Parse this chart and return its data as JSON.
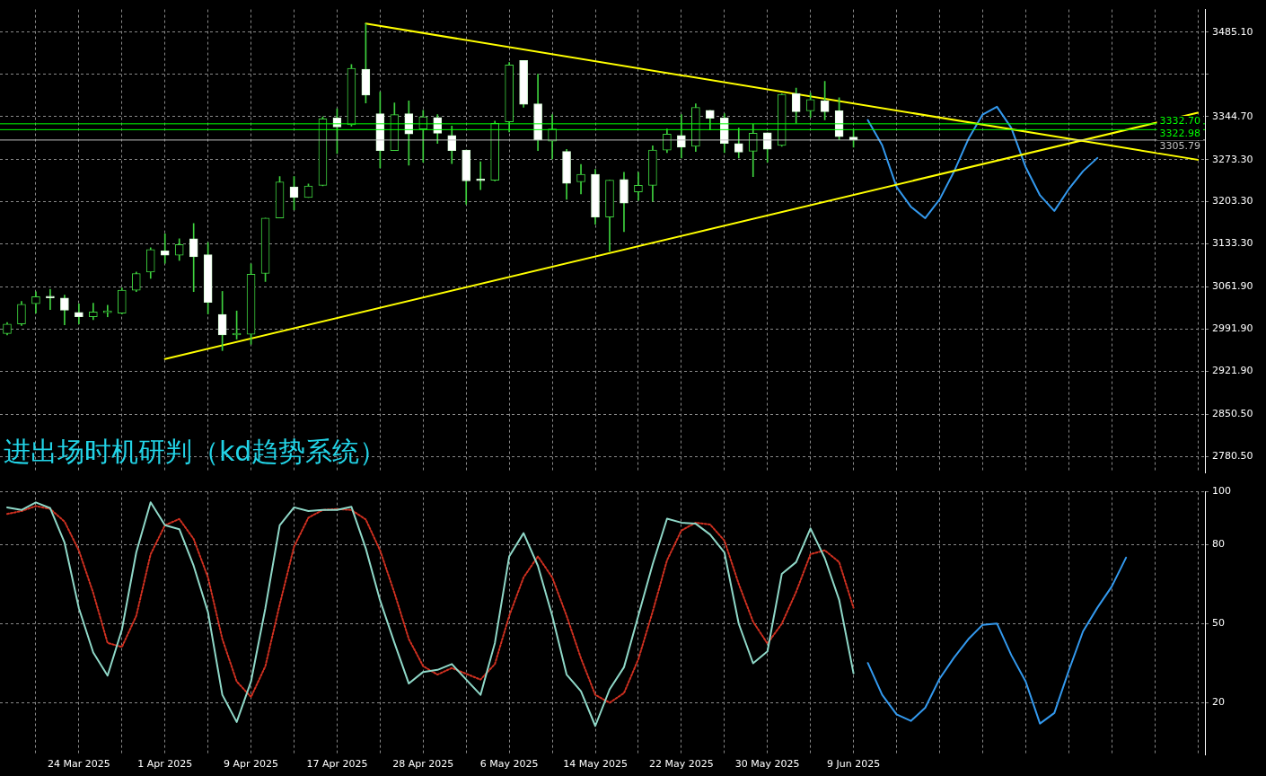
{
  "chart_data": [
    {
      "type": "candlestick",
      "categories": [
        null,
        null,
        null,
        null,
        null,
        null,
        null,
        null,
        null,
        null,
        null,
        null,
        null,
        null,
        null,
        null,
        null,
        null,
        null,
        null,
        null,
        null,
        null,
        null,
        null,
        null,
        null,
        null,
        null,
        null,
        null,
        null,
        null,
        null,
        null,
        null,
        null,
        null,
        null,
        null,
        null,
        null,
        null,
        null,
        null,
        null,
        null,
        null,
        null,
        null,
        null,
        null,
        null,
        null,
        null,
        null,
        null,
        null,
        null,
        null,
        null,
        null,
        null,
        null,
        null,
        null,
        null,
        null,
        null,
        null,
        null,
        null,
        null,
        null,
        null,
        null,
        null,
        null,
        null,
        null,
        null,
        null,
        null,
        null
      ],
      "ohlc": [
        [
          2984.5,
          3002.6,
          2982.0,
          3000.3
        ],
        [
          3000.3,
          3037.7,
          2997.8,
          3032.8
        ],
        [
          3033.8,
          3054.0,
          3018.4,
          3045.8
        ],
        [
          3045.8,
          3057.9,
          3024.2,
          3043.5
        ],
        [
          3043.5,
          3048.2,
          2998.8,
          3023.3
        ],
        [
          3019.4,
          3033.8,
          3000.3,
          3012.2
        ],
        [
          3012.2,
          3034.8,
          3007.5,
          3020.4
        ],
        [
          3019.0,
          3031.4,
          3012.2,
          3019.9
        ],
        [
          3018.4,
          3060.2,
          3017.0,
          3056.4
        ],
        [
          3056.4,
          3086.6,
          3054.0,
          3084.2
        ],
        [
          3086.6,
          3126.9,
          3076.0,
          3124.1
        ],
        [
          3121.6,
          3150.0,
          3101.0,
          3114.4
        ],
        [
          3114.4,
          3141.8,
          3105.8,
          3132.1
        ],
        [
          3141.8,
          3167.2,
          3054.0,
          3112.0
        ],
        [
          3115.4,
          3135.6,
          3017.0,
          3036.3
        ],
        [
          3016.1,
          3054.4,
          2956.1,
          2982.0
        ],
        [
          2982.0,
          3021.9,
          2975.2,
          2983.0
        ],
        [
          2983.4,
          3100.0,
          2966.6,
          3082.8
        ],
        [
          3084.2,
          3176.3,
          3070.8,
          3176.3
        ],
        [
          3176.3,
          3245.0,
          3176.3,
          3236.3
        ],
        [
          3228.1,
          3245.0,
          3189.7,
          3210.4
        ],
        [
          3210.4,
          3232.9,
          3210.4,
          3229.6
        ],
        [
          3230.6,
          3344.3,
          3229.6,
          3340.8
        ],
        [
          3342.3,
          3357.7,
          3283.3,
          3327.4
        ],
        [
          3331.3,
          3431.1,
          3328.9,
          3424.9
        ],
        [
          3423.4,
          3499.1,
          3367.3,
          3380.3
        ],
        [
          3349.5,
          3385.4,
          3259.4,
          3288.1
        ],
        [
          3288.1,
          3367.3,
          3288.1,
          3348.0
        ],
        [
          3349.5,
          3370.6,
          3264.1,
          3315.9
        ],
        [
          3324.1,
          3355.2,
          3268.9,
          3344.3
        ],
        [
          3343.3,
          3348.0,
          3300.1,
          3316.9
        ],
        [
          3313.5,
          3328.9,
          3266.6,
          3288.1
        ],
        [
          3289.0,
          3289.0,
          3199.3,
          3237.8
        ],
        [
          3240.1,
          3269.9,
          3223.4,
          3238.2
        ],
        [
          3239.2,
          3337.1,
          3237.8,
          3333.6
        ],
        [
          3336.1,
          3434.4,
          3319.2,
          3430.6
        ],
        [
          3437.8,
          3437.8,
          3360.1,
          3364.9
        ],
        [
          3365.9,
          3415.2,
          3288.1,
          3305.8
        ],
        [
          3304.0,
          3348.0,
          3274.6,
          3324.1
        ],
        [
          3286.7,
          3290.4,
          3207.5,
          3233.9
        ],
        [
          3236.3,
          3265.1,
          3216.2,
          3248.7
        ],
        [
          3248.7,
          3256.9,
          3165.8,
          3177.7
        ],
        [
          3177.7,
          3239.2,
          3121.2,
          3239.2
        ],
        [
          3240.1,
          3252.2,
          3153.7,
          3200.8
        ],
        [
          3219.5,
          3252.2,
          3205.5,
          3230.6
        ],
        [
          3230.6,
          3296.2,
          3204.1,
          3289.0
        ],
        [
          3289.0,
          3324.1,
          3284.7,
          3315.5
        ],
        [
          3313.5,
          3348.0,
          3276.1,
          3293.9
        ],
        [
          3295.3,
          3365.9,
          3286.7,
          3360.1
        ],
        [
          3355.2,
          3355.2,
          3322.7,
          3341.8
        ],
        [
          3342.3,
          3349.5,
          3284.7,
          3300.1
        ],
        [
          3300.1,
          3325.6,
          3276.1,
          3285.7
        ],
        [
          3287.1,
          3332.2,
          3245.0,
          3316.9
        ],
        [
          3317.8,
          3317.8,
          3268.9,
          3290.4
        ],
        [
          3296.8,
          3382.6,
          3295.3,
          3381.7
        ],
        [
          3383.1,
          3392.2,
          3333.6,
          3352.9
        ],
        [
          3354.3,
          3384.0,
          3343.3,
          3373.1
        ],
        [
          3371.0,
          3403.3,
          3339.4,
          3352.9
        ],
        [
          3354.3,
          3375.9,
          3306.3,
          3311.2
        ],
        [
          3310.6,
          3321.7,
          3293.9,
          3305.8
        ],
        null,
        null,
        null,
        null,
        null,
        null,
        null,
        null,
        null,
        null,
        null,
        null,
        null,
        null,
        null,
        null,
        null,
        null,
        null,
        null,
        null,
        null,
        null,
        null
      ],
      "series": [
        {
          "type": "line",
          "color": "#ffff00",
          "values": [
            null,
            null,
            null,
            null,
            null,
            null,
            null,
            null,
            null,
            null,
            null,
            null,
            null,
            null,
            null,
            null,
            null,
            null,
            null,
            null,
            null,
            null,
            null,
            null,
            null,
            3499,
            null,
            null,
            null,
            null,
            null,
            null,
            null,
            null,
            null,
            null,
            null,
            null,
            null,
            null,
            null,
            null,
            null,
            null,
            null,
            null,
            null,
            null,
            null,
            null,
            null,
            null,
            null,
            null,
            null,
            null,
            null,
            null,
            null,
            null,
            null,
            null,
            null,
            null,
            null,
            null,
            null,
            null,
            null,
            null,
            null,
            null,
            null,
            null,
            null,
            null,
            null,
            null,
            null,
            null,
            null,
            null,
            null,
            3273
          ]
        },
        {
          "type": "line",
          "color": "#ffff00",
          "values": [
            null,
            null,
            null,
            null,
            null,
            null,
            null,
            null,
            null,
            null,
            null,
            2942,
            null,
            null,
            null,
            null,
            null,
            null,
            null,
            null,
            null,
            null,
            null,
            null,
            null,
            null,
            null,
            null,
            null,
            null,
            null,
            null,
            null,
            null,
            null,
            null,
            null,
            null,
            null,
            null,
            null,
            null,
            null,
            null,
            null,
            null,
            null,
            null,
            null,
            null,
            null,
            null,
            null,
            null,
            null,
            null,
            null,
            null,
            null,
            null,
            null,
            null,
            null,
            null,
            null,
            null,
            null,
            null,
            null,
            null,
            null,
            null,
            null,
            null,
            null,
            null,
            null,
            null,
            null,
            null,
            null,
            null,
            null,
            3351
          ]
        },
        {
          "type": "line",
          "color": "#3399ee",
          "values": [
            null,
            null,
            null,
            null,
            null,
            null,
            null,
            null,
            null,
            null,
            null,
            null,
            null,
            null,
            null,
            null,
            null,
            null,
            null,
            null,
            null,
            null,
            null,
            null,
            null,
            null,
            null,
            null,
            null,
            null,
            null,
            null,
            null,
            null,
            null,
            null,
            null,
            null,
            null,
            null,
            null,
            null,
            null,
            null,
            null,
            null,
            null,
            null,
            null,
            null,
            null,
            null,
            null,
            null,
            null,
            null,
            null,
            null,
            null,
            null,
            3339,
            3297,
            3228,
            3195,
            3176,
            3207,
            3253,
            3307,
            3348,
            3361,
            3326,
            3261,
            3214,
            3188,
            3224,
            3254,
            3276,
            null,
            null,
            null,
            null,
            null,
            null,
            null
          ]
        }
      ],
      "ref_lines": [
        {
          "axis": "y",
          "value": 3332.7,
          "label": "3332.70",
          "color": "#00ff00"
        },
        {
          "axis": "y",
          "value": 3322.98,
          "label": "3322.98",
          "color": "#00ff00"
        },
        {
          "axis": "y",
          "value": 3305.79,
          "label": "3305.79",
          "color": "#c0c0c0"
        }
      ],
      "ylim": [
        2753.2,
        3522.5
      ],
      "yticks": [
        {
          "value": 2780.5,
          "label": "2780.50"
        },
        {
          "value": 2850.5,
          "label": "2850.50"
        },
        {
          "value": 2921.9,
          "label": "2921.90"
        },
        {
          "value": 2991.9,
          "label": "2991.90"
        },
        {
          "value": 3061.9,
          "label": "3061.90"
        },
        {
          "value": 3133.3,
          "label": "3133.30"
        },
        {
          "value": 3203.3,
          "label": "3203.30"
        },
        {
          "value": 3273.3,
          "label": "3273.30"
        },
        {
          "value": 3344.7,
          "label": "3344.70"
        },
        {
          "value": 3414.7,
          "label": null
        },
        {
          "value": 3485.1,
          "label": "3485.10"
        }
      ],
      "grid": true,
      "tick_labels": "y",
      "annotations": [
        "进出场时机研判（kd趋势系统）"
      ]
    },
    {
      "type": "line",
      "categories": [
        null,
        null,
        null,
        null,
        null,
        "24 Mar 2025",
        null,
        null,
        null,
        null,
        null,
        "1 Apr 2025",
        null,
        null,
        null,
        null,
        null,
        "9 Apr 2025",
        null,
        null,
        null,
        null,
        null,
        "17 Apr 2025",
        null,
        null,
        null,
        null,
        null,
        "28 Apr 2025",
        null,
        null,
        null,
        null,
        null,
        "6 May 2025",
        null,
        null,
        null,
        null,
        null,
        "14 May 2025",
        null,
        null,
        null,
        null,
        null,
        "22 May 2025",
        null,
        null,
        null,
        null,
        null,
        "30 May 2025",
        null,
        null,
        null,
        null,
        null,
        "9 Jun 2025",
        null,
        null,
        null,
        null,
        null,
        null,
        null,
        null,
        null,
        null,
        null,
        null,
        null,
        null,
        null,
        null,
        null,
        null,
        null,
        null,
        null,
        null,
        null,
        null
      ],
      "series": [
        {
          "color": "#8fd8c8",
          "line_style": "solid",
          "values": [
            94.1,
            93.1,
            96.0,
            93.8,
            80.7,
            55.8,
            39.0,
            30.2,
            47.7,
            77.0,
            96.0,
            87.3,
            85.8,
            71.9,
            54.3,
            22.9,
            12.6,
            28.0,
            55.8,
            87.3,
            94.1,
            92.7,
            93.1,
            93.1,
            94.3,
            78.5,
            58.7,
            42.6,
            27.2,
            31.6,
            32.4,
            34.6,
            28.7,
            22.9,
            42.6,
            75.5,
            84.3,
            71.9,
            52.9,
            30.6,
            24.3,
            11.1,
            25.0,
            33.4,
            53.0,
            72.5,
            89.8,
            88.3,
            87.9,
            83.8,
            77.0,
            49.9,
            34.9,
            39.4,
            68.8,
            73.3,
            86.1,
            74.8,
            59.0,
            31.1,
            null,
            null,
            null,
            null,
            null,
            null,
            null,
            null,
            null,
            null,
            null,
            null,
            null,
            null,
            null,
            null,
            null,
            null,
            null,
            null,
            null,
            null,
            null,
            null
          ]
        },
        {
          "color": "#d03020",
          "line_style": "dotted",
          "values": [
            91.6,
            92.7,
            94.6,
            93.5,
            88.7,
            77.7,
            61.6,
            42.6,
            41.1,
            52.9,
            76.3,
            87.3,
            89.7,
            82.1,
            67.5,
            44.1,
            28.0,
            22.1,
            33.8,
            57.2,
            79.2,
            90.2,
            93.1,
            93.5,
            93.1,
            89.5,
            77.7,
            61.6,
            44.1,
            33.8,
            30.6,
            33.1,
            30.9,
            28.7,
            34.6,
            52.9,
            67.5,
            75.5,
            67.5,
            52.9,
            36.8,
            22.9,
            19.9,
            23.6,
            36.4,
            54.5,
            74.0,
            85.3,
            88.3,
            87.6,
            81.5,
            65.0,
            50.7,
            42.4,
            49.9,
            62.0,
            76.3,
            77.8,
            73.3,
            56.0,
            null,
            null,
            null,
            null,
            null,
            null,
            null,
            null,
            null,
            null,
            null,
            null,
            null,
            null,
            null,
            null,
            null,
            null,
            null,
            null,
            null,
            null,
            null,
            null
          ]
        },
        {
          "color": "#3399ee",
          "line_style": "solid",
          "values": [
            null,
            null,
            null,
            null,
            null,
            null,
            null,
            null,
            null,
            null,
            null,
            null,
            null,
            null,
            null,
            null,
            null,
            null,
            null,
            null,
            null,
            null,
            null,
            null,
            null,
            null,
            null,
            null,
            null,
            null,
            null,
            null,
            null,
            null,
            null,
            null,
            null,
            null,
            null,
            null,
            null,
            null,
            null,
            null,
            null,
            null,
            null,
            null,
            null,
            null,
            null,
            null,
            null,
            null,
            null,
            null,
            null,
            null,
            null,
            null,
            35,
            22.9,
            15.5,
            13.0,
            18,
            29,
            37,
            44,
            49.5,
            50,
            38,
            28,
            12,
            16,
            32,
            47,
            56,
            64,
            75,
            null,
            null,
            null,
            null,
            null
          ]
        }
      ],
      "ylim": [
        0,
        100
      ],
      "yticks": [
        20,
        50,
        80,
        100
      ],
      "grid": true
    }
  ]
}
